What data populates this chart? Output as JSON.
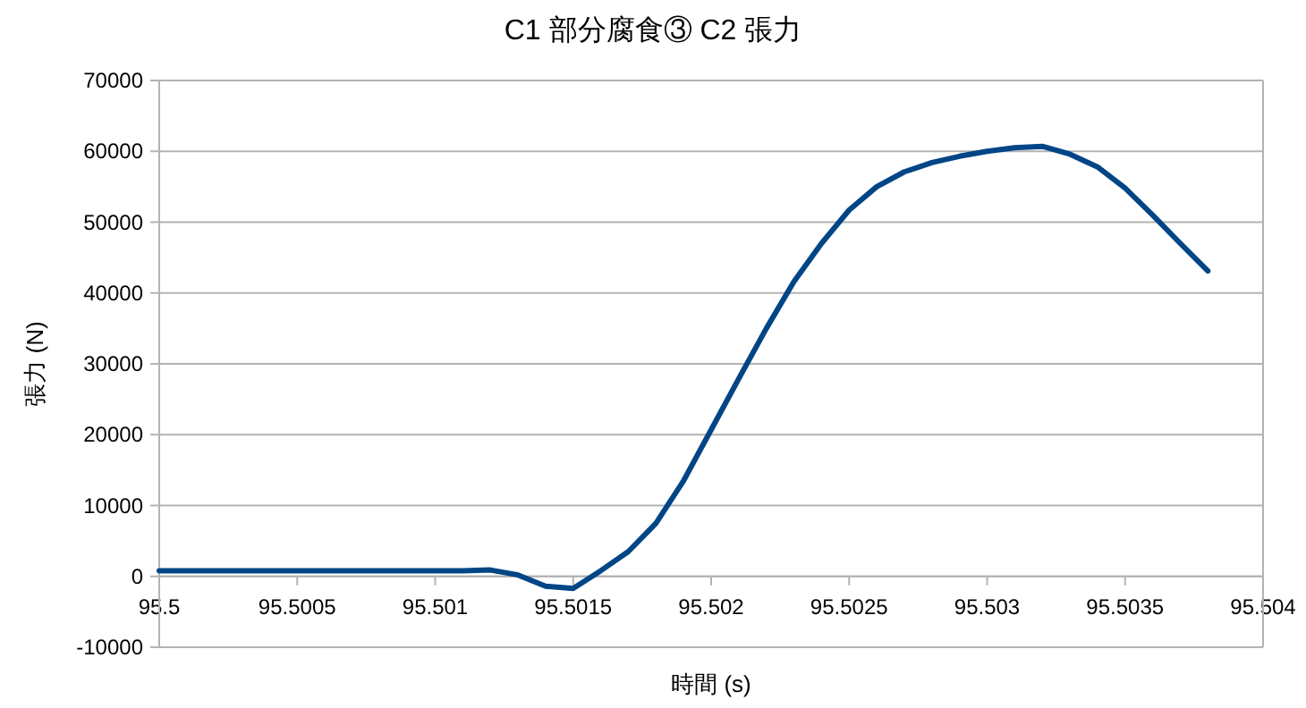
{
  "chart_data": {
    "type": "line",
    "title": "C1 部分腐食③ C2 張力",
    "xlabel": "時間 (s)",
    "ylabel": "張力 (N)",
    "x": [
      95.5,
      95.5001,
      95.5002,
      95.5003,
      95.5004,
      95.5005,
      95.5006,
      95.5007,
      95.5008,
      95.5009,
      95.501,
      95.5011,
      95.5012,
      95.5013,
      95.5014,
      95.5015,
      95.5016,
      95.5017,
      95.5018,
      95.5019,
      95.502,
      95.5021,
      95.5022,
      95.5023,
      95.5024,
      95.5025,
      95.5026,
      95.5027,
      95.5028,
      95.5029,
      95.503,
      95.5031,
      95.5032,
      95.5033,
      95.5034,
      95.5035,
      95.5036,
      95.5037,
      95.5038
    ],
    "series": [
      {
        "color": "#004586",
        "values": [
          800,
          800,
          800,
          800,
          800,
          800,
          800,
          800,
          800,
          800,
          800,
          800,
          900,
          200,
          -1400,
          -1700,
          800,
          3500,
          7500,
          13500,
          20700,
          27900,
          35000,
          41600,
          47000,
          51700,
          55000,
          57100,
          58400,
          59300,
          60000,
          60500,
          60700,
          59600,
          57800,
          54800,
          51000,
          47000,
          43100
        ]
      }
    ],
    "xlim": [
      95.5,
      95.504
    ],
    "xticks": [
      95.5,
      95.5005,
      95.501,
      95.5015,
      95.502,
      95.5025,
      95.503,
      95.5035,
      95.504
    ],
    "ylim": [
      -10000,
      70000
    ],
    "yticks": [
      -10000,
      0,
      10000,
      20000,
      30000,
      40000,
      50000,
      60000,
      70000
    ],
    "grid": "y",
    "marker": "none",
    "line_style": "solid"
  }
}
